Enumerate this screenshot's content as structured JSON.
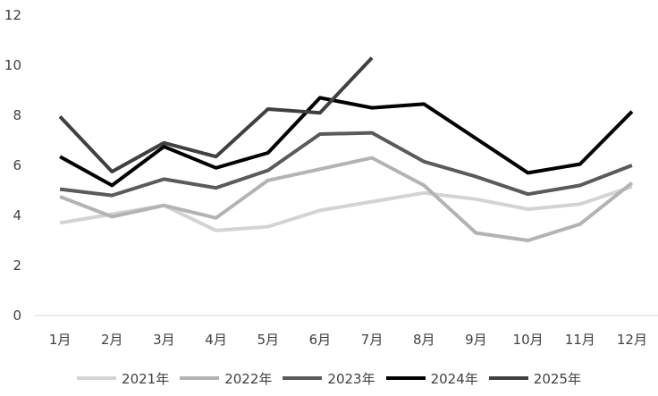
{
  "chart_data": {
    "type": "line",
    "categories": [
      "1月",
      "2月",
      "3月",
      "4月",
      "5月",
      "6月",
      "7月",
      "8月",
      "9月",
      "10月",
      "11月",
      "12月"
    ],
    "ylim": [
      0,
      12
    ],
    "yticks": [
      0,
      2,
      4,
      6,
      8,
      10,
      12
    ],
    "grid": false,
    "legend": "bottom",
    "series": [
      {
        "name": "2021年",
        "color": "#d3d3d3",
        "values": [
          3.7,
          4.05,
          4.4,
          3.4,
          3.55,
          4.2,
          4.55,
          4.9,
          4.65,
          4.25,
          4.45,
          5.15
        ]
      },
      {
        "name": "2022年",
        "color": "#b3b3b3",
        "values": [
          4.75,
          3.95,
          4.4,
          3.9,
          5.4,
          5.85,
          6.3,
          5.2,
          3.3,
          3.0,
          3.65,
          5.3
        ]
      },
      {
        "name": "2023年",
        "color": "#5a5a5a",
        "values": [
          5.05,
          4.8,
          5.45,
          5.1,
          5.8,
          7.25,
          7.3,
          6.15,
          5.55,
          4.85,
          5.2,
          6.0
        ]
      },
      {
        "name": "2024年",
        "color": "#000000",
        "values": [
          6.35,
          5.2,
          6.75,
          5.9,
          6.5,
          8.7,
          8.3,
          8.45,
          null,
          5.7,
          6.05,
          8.15
        ]
      },
      {
        "name": "2025年",
        "color": "#404040",
        "values": [
          7.95,
          5.75,
          6.9,
          6.35,
          8.25,
          8.1,
          10.3,
          null,
          null,
          null,
          null,
          null
        ]
      }
    ]
  }
}
